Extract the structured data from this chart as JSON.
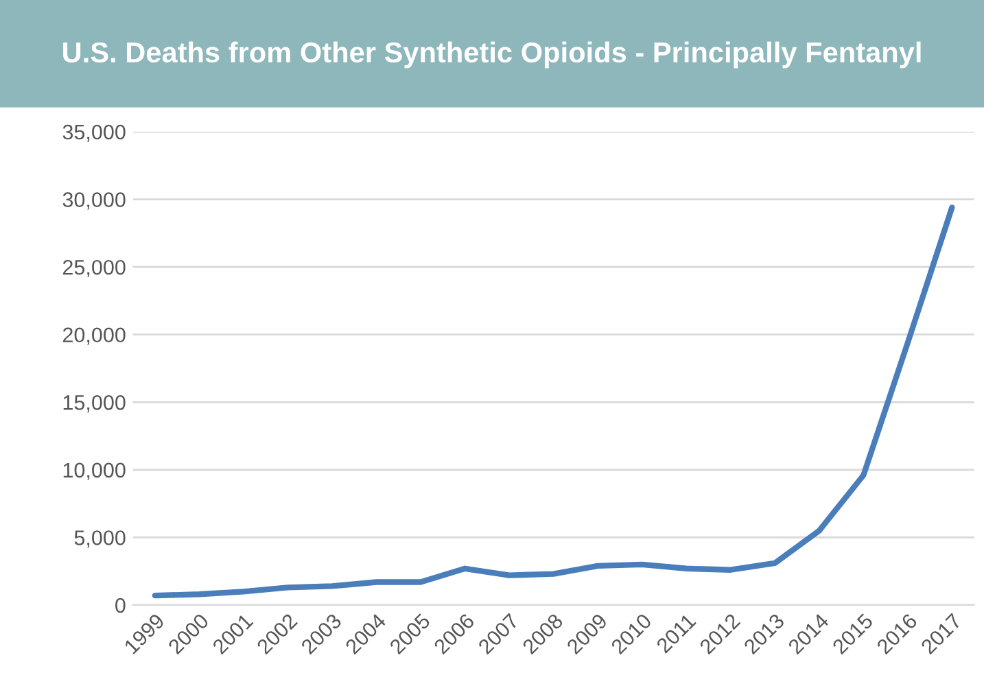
{
  "chart_data": {
    "type": "line",
    "title": "U.S. Deaths from Other Synthetic Opioids - Principally Fentanyl",
    "categories": [
      "1999",
      "2000",
      "2001",
      "2002",
      "2003",
      "2004",
      "2005",
      "2006",
      "2007",
      "2008",
      "2009",
      "2010",
      "2011",
      "2012",
      "2013",
      "2014",
      "2015",
      "2016",
      "2017"
    ],
    "series": [
      {
        "color": "#4a7ebb",
        "values": [
          700,
          800,
          1000,
          1300,
          1400,
          1700,
          1700,
          2700,
          2200,
          2300,
          2900,
          3000,
          2700,
          2600,
          3100,
          5500,
          9600,
          19400,
          29400
        ]
      }
    ],
    "ylim": [
      0,
      35000
    ],
    "yticks": [
      {
        "value": 0,
        "label": "0"
      },
      {
        "value": 5000,
        "label": "5,000"
      },
      {
        "value": 10000,
        "label": "10,000"
      },
      {
        "value": 15000,
        "label": "15,000"
      },
      {
        "value": 20000,
        "label": "20,000"
      },
      {
        "value": 25000,
        "label": "25,000"
      },
      {
        "value": 30000,
        "label": "30,000"
      },
      {
        "value": 35000,
        "label": "35,000"
      }
    ],
    "grid": "y",
    "marker": "none",
    "line_style": "solid"
  }
}
